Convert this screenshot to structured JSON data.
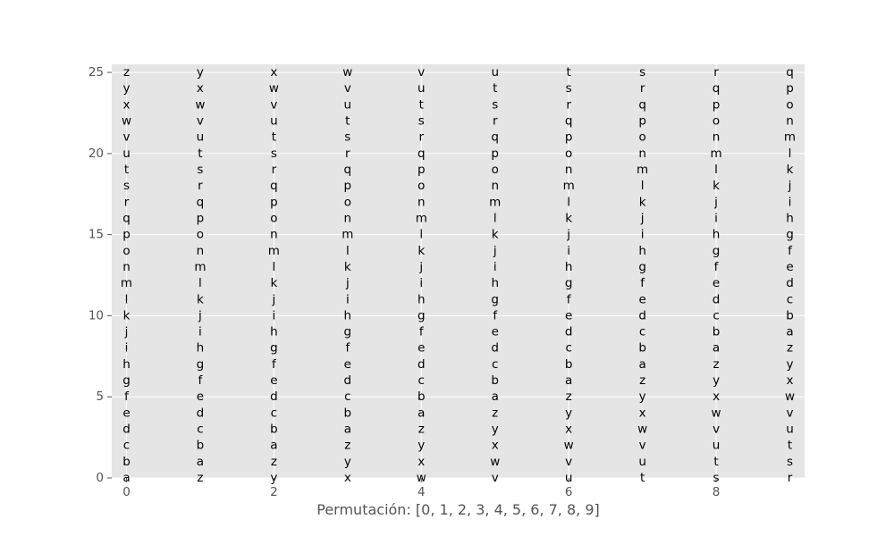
{
  "chart_data": {
    "type": "table",
    "title": "",
    "xlabel": "Permutación: [0, 1, 2, 3, 4, 5, 6, 7, 8, 9]",
    "ylabel": "",
    "xlim": [
      -0.2,
      9.2
    ],
    "ylim": [
      0,
      25.5
    ],
    "x_ticks": [
      0,
      2,
      4,
      6,
      8
    ],
    "y_ticks": [
      0,
      5,
      10,
      15,
      20,
      25
    ],
    "grid": true,
    "columns": [
      0,
      1,
      2,
      3,
      4,
      5,
      6,
      7,
      8,
      9
    ],
    "rows": [
      0,
      1,
      2,
      3,
      4,
      5,
      6,
      7,
      8,
      9,
      10,
      11,
      12,
      13,
      14,
      15,
      16,
      17,
      18,
      19,
      20,
      21,
      22,
      23,
      24,
      25
    ],
    "alphabet": "abcdefghijklmnopqrstuvwxyz",
    "shifts": [
      0,
      1,
      2,
      3,
      4,
      5,
      6,
      7,
      8,
      9
    ],
    "colors": {
      "background": "#E5E5E5",
      "grid": "#FFFFFF",
      "text": "#000000",
      "axis_text": "#555555"
    }
  }
}
